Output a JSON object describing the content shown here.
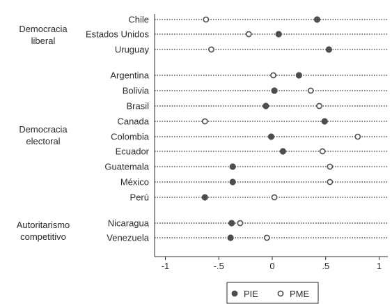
{
  "chart_data": {
    "type": "scatter",
    "xlim": [
      -1.05,
      1.05
    ],
    "x_ticks": [
      "-1",
      "-.5",
      "0",
      ".5",
      "1"
    ],
    "x_tick_values": [
      -1,
      -0.5,
      0,
      0.5,
      1
    ],
    "grid": "dotted horizontal line per country",
    "legend_position": "bottom-center",
    "legend": [
      {
        "label": "PIE",
        "marker": "filled-circle"
      },
      {
        "label": "PME",
        "marker": "hollow-circle"
      }
    ],
    "groups": [
      {
        "label_lines": [
          "Democracia",
          "liberal"
        ],
        "countries": [
          {
            "name": "Chile",
            "PIE": 0.42,
            "PME": -0.62
          },
          {
            "name": "Estados Unidos",
            "PIE": 0.06,
            "PME": -0.22
          },
          {
            "name": "Uruguay",
            "PIE": 0.53,
            "PME": -0.57
          }
        ]
      },
      {
        "label_lines": [
          "Democracia",
          "electoral"
        ],
        "countries": [
          {
            "name": "Argentina",
            "PIE": 0.25,
            "PME": 0.01
          },
          {
            "name": "Bolivia",
            "PIE": 0.02,
            "PME": 0.36
          },
          {
            "name": "Brasil",
            "PIE": -0.06,
            "PME": 0.44
          },
          {
            "name": "Canada",
            "PIE": 0.49,
            "PME": -0.63
          },
          {
            "name": "Colombia",
            "PIE": -0.01,
            "PME": 0.8
          },
          {
            "name": "Ecuador",
            "PIE": 0.1,
            "PME": 0.47
          },
          {
            "name": "Guatemala",
            "PIE": -0.37,
            "PME": 0.54
          },
          {
            "name": "México",
            "PIE": -0.37,
            "PME": 0.54
          },
          {
            "name": "Perú",
            "PIE": -0.63,
            "PME": 0.02
          }
        ]
      },
      {
        "label_lines": [
          "Autoritarismo",
          "competitivo"
        ],
        "countries": [
          {
            "name": "Nicaragua",
            "PIE": -0.38,
            "PME": -0.3
          },
          {
            "name": "Venezuela",
            "PIE": -0.39,
            "PME": -0.05
          }
        ]
      }
    ]
  },
  "colors": {
    "pie_fill": "#4d4d4d",
    "pme_stroke": "#4d4d4d",
    "text": "#2b2b2b",
    "axis": "#2b2b2b"
  }
}
